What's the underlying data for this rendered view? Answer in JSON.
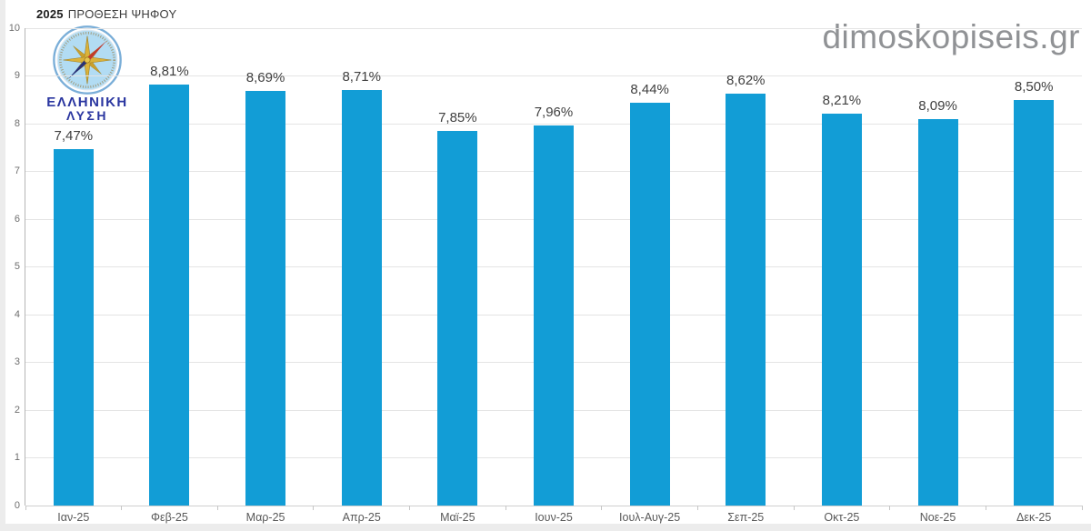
{
  "page": {
    "title_bold": "2025",
    "title_rest": "ΠΡΟΘΕΣΗ ΨΗΦΟΥ",
    "watermark": "dimoskopiseis.gr",
    "logo": {
      "line1": "ΕΛΛΗΝΙΚΗ",
      "line2": "ΛΥΣΗ"
    }
  },
  "colors": {
    "bar": "#129dd6",
    "gridline": "#e4e4e4",
    "axis": "#b5b5b5",
    "logo_text": "#2a36a0",
    "watermark_text": "#909295"
  },
  "chart_data": {
    "type": "bar",
    "title": "2025 ΠΡΟΘΕΣΗ ΨΗΦΟΥ",
    "categories": [
      "Ιαν-25",
      "Φεβ-25",
      "Μαρ-25",
      "Απρ-25",
      "Μαϊ-25",
      "Ιουν-25",
      "Ιουλ-Αυγ-25",
      "Σεπ-25",
      "Οκτ-25",
      "Νοε-25",
      "Δεκ-25"
    ],
    "values": [
      7.47,
      8.81,
      8.69,
      8.71,
      7.85,
      7.96,
      8.44,
      8.62,
      8.21,
      8.09,
      8.5
    ],
    "value_labels": [
      "7,47%",
      "8,81%",
      "8,69%",
      "8,71%",
      "7,85%",
      "7,96%",
      "8,44%",
      "8,62%",
      "8,21%",
      "8,09%",
      "8,50%"
    ],
    "xlabel": "",
    "ylabel": "",
    "ylim": [
      0,
      10
    ],
    "y_ticks": [
      0,
      1,
      2,
      3,
      4,
      5,
      6,
      7,
      8,
      9,
      10
    ],
    "grid": true,
    "legend": "none",
    "bar_color": "#129dd6"
  }
}
